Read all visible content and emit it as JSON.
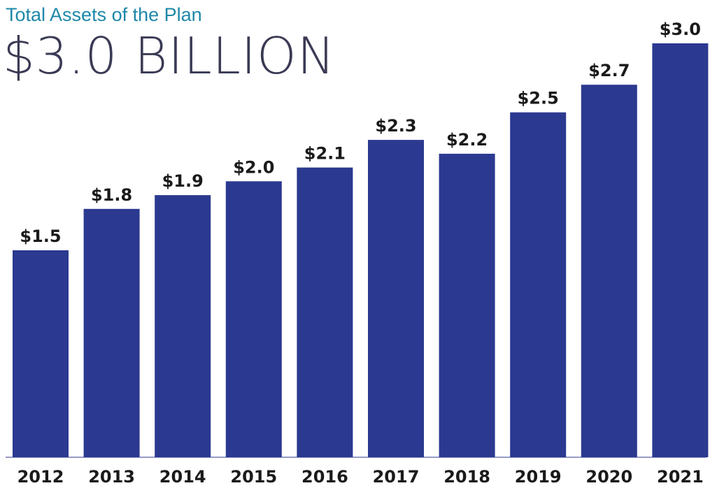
{
  "header": {
    "subtitle": "Total Assets of the Plan",
    "headline": "$3.0 BILLION"
  },
  "colors": {
    "bar": "#2b3990",
    "subtitle": "#1e88a8",
    "headline": "#3a3a55",
    "baseline": "#2b3990"
  },
  "chart_data": {
    "type": "bar",
    "title": "Total Assets of the Plan",
    "categories": [
      "2012",
      "2013",
      "2014",
      "2015",
      "2016",
      "2017",
      "2018",
      "2019",
      "2020",
      "2021"
    ],
    "values": [
      1.5,
      1.8,
      1.9,
      2.0,
      2.1,
      2.3,
      2.2,
      2.5,
      2.7,
      3.0
    ],
    "data_labels": [
      "$1.5",
      "$1.8",
      "$1.9",
      "$2.0",
      "$2.1",
      "$2.3",
      "$2.2",
      "$2.5",
      "$2.7",
      "$3.0"
    ],
    "xlabel": "",
    "ylabel": "",
    "ylim": [
      0,
      3.0
    ],
    "grid": false,
    "legend": "none"
  }
}
